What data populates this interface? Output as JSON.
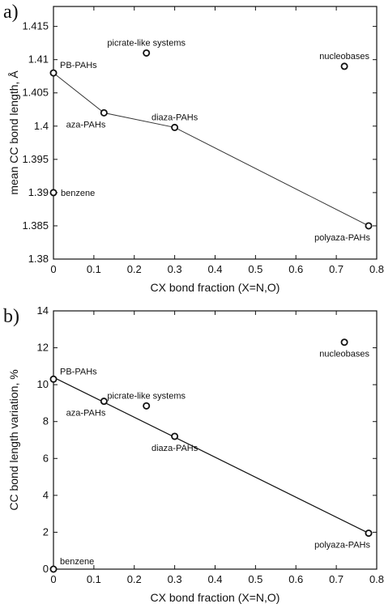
{
  "chart_data": [
    {
      "panel_label": "a)",
      "type": "scatter",
      "xlabel": "CX bond fraction (X=N,O)",
      "ylabel": "mean CC bond length, Å",
      "xlim": [
        0,
        0.8
      ],
      "ylim": [
        1.38,
        1.418
      ],
      "xticks": [
        0,
        0.1,
        0.2,
        0.3,
        0.4,
        0.5,
        0.6,
        0.7,
        0.8
      ],
      "xtick_labels": [
        "0",
        "0.1",
        "0.2",
        "0.3",
        "0.4",
        "0.5",
        "0.6",
        "0.7",
        "0.8"
      ],
      "yticks": [
        1.38,
        1.385,
        1.39,
        1.395,
        1.4,
        1.405,
        1.41,
        1.415
      ],
      "ytick_labels": [
        "1.38",
        "1.385",
        "1.39",
        "1.395",
        "1.4",
        "1.405",
        "1.41",
        "1.415"
      ],
      "grid": false,
      "points": [
        {
          "label": "PB-PAHs",
          "x": 0.0,
          "y": 1.408,
          "label_pos": "right-above"
        },
        {
          "label": "aza-PAHs",
          "x": 0.125,
          "y": 1.402,
          "label_pos": "below-left"
        },
        {
          "label": "diaza-PAHs",
          "x": 0.3,
          "y": 1.3998,
          "label_pos": "above"
        },
        {
          "label": "polyaza-PAHs",
          "x": 0.78,
          "y": 1.385,
          "label_pos": "below-left"
        },
        {
          "label": "picrate-like systems",
          "x": 0.23,
          "y": 1.411,
          "label_pos": "above"
        },
        {
          "label": "nucleobases",
          "x": 0.72,
          "y": 1.409,
          "label_pos": "above"
        },
        {
          "label": "benzene",
          "x": 0.0,
          "y": 1.39,
          "label_pos": "right"
        }
      ],
      "line_series": {
        "x": [
          0.0,
          0.125,
          0.3,
          0.78
        ],
        "y": [
          1.408,
          1.402,
          1.3998,
          1.385
        ]
      }
    },
    {
      "panel_label": "b)",
      "type": "scatter",
      "xlabel": "CX bond fraction (X=N,O)",
      "ylabel": "CC bond length variation, %",
      "xlim": [
        0,
        0.8
      ],
      "ylim": [
        0,
        14
      ],
      "xticks": [
        0,
        0.1,
        0.2,
        0.3,
        0.4,
        0.5,
        0.6,
        0.7,
        0.8
      ],
      "xtick_labels": [
        "0",
        "0.1",
        "0.2",
        "0.3",
        "0.4",
        "0.5",
        "0.6",
        "0.7",
        "0.8"
      ],
      "yticks": [
        0,
        2,
        4,
        6,
        8,
        10,
        12,
        14
      ],
      "ytick_labels": [
        "0",
        "2",
        "4",
        "6",
        "8",
        "10",
        "12",
        "14"
      ],
      "grid": false,
      "points": [
        {
          "label": "PB-PAHs",
          "x": 0.0,
          "y": 10.3,
          "label_pos": "right-above"
        },
        {
          "label": "aza-PAHs",
          "x": 0.125,
          "y": 9.1,
          "label_pos": "below-left"
        },
        {
          "label": "picrate-like systems",
          "x": 0.23,
          "y": 8.85,
          "label_pos": "above"
        },
        {
          "label": "diaza-PAHs",
          "x": 0.3,
          "y": 7.2,
          "label_pos": "below"
        },
        {
          "label": "nucleobases",
          "x": 0.72,
          "y": 12.3,
          "label_pos": "below"
        },
        {
          "label": "polyaza-PAHs",
          "x": 0.78,
          "y": 1.95,
          "label_pos": "below-left"
        },
        {
          "label": "benzene",
          "x": 0.0,
          "y": 0.0,
          "label_pos": "right-above"
        }
      ],
      "fit_line": {
        "x": [
          0.0,
          0.78
        ],
        "y": [
          10.4,
          1.95
        ]
      }
    }
  ]
}
